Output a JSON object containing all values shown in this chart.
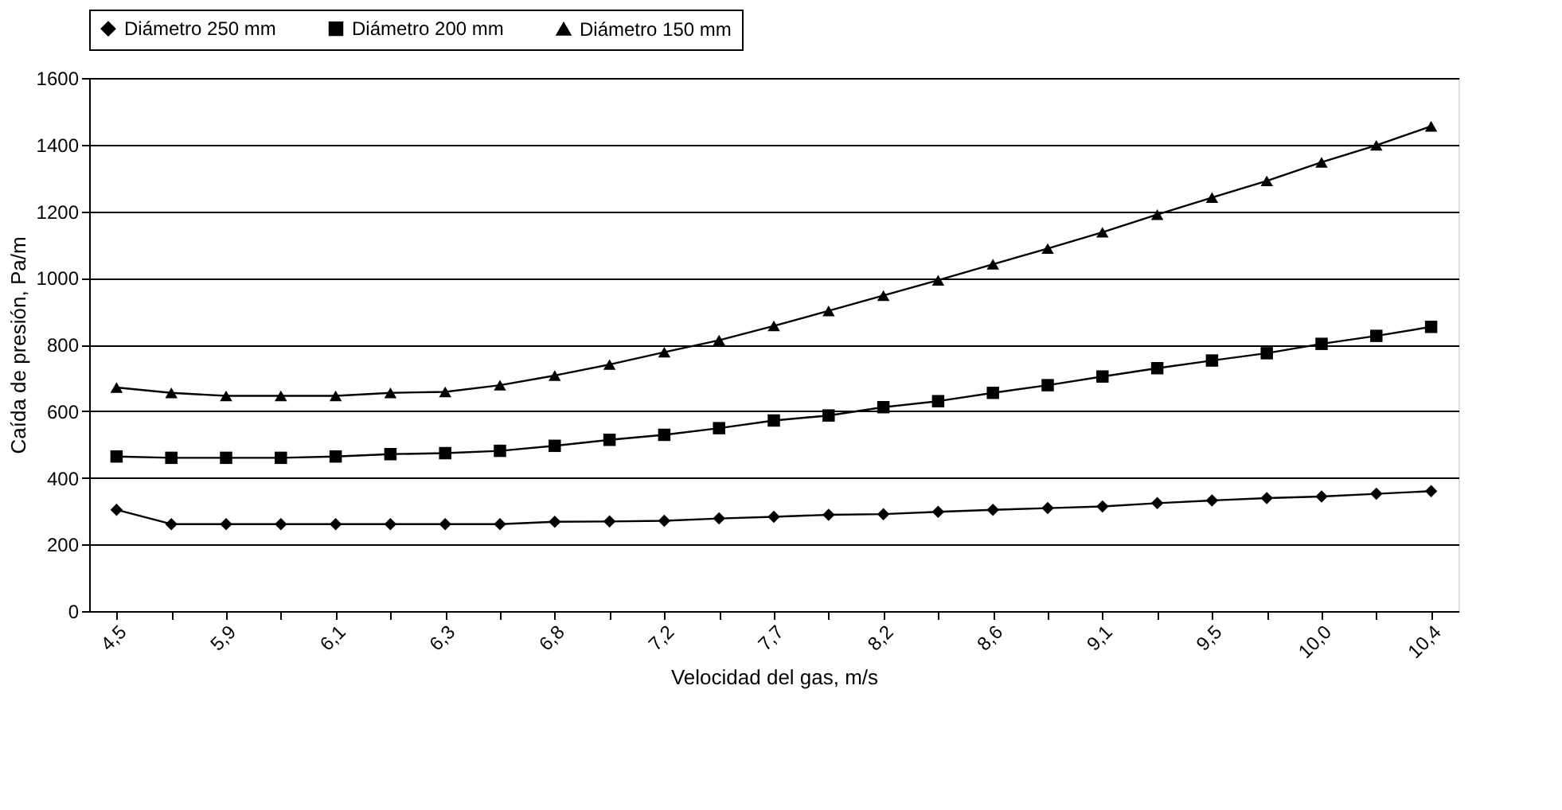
{
  "chart_data": {
    "type": "line",
    "xlabel": "Velocidad del gas, m/s",
    "ylabel": "Caída de presión, Pa/m",
    "categories": [
      "4,5",
      null,
      "5,9",
      null,
      "6,1",
      null,
      "6,3",
      null,
      "6,8",
      null,
      "7,2",
      null,
      "7,7",
      null,
      "8,2",
      null,
      "8,6",
      null,
      "9,1",
      null,
      "9,5",
      null,
      "10,0",
      null,
      "10,4"
    ],
    "series": [
      {
        "name": "Diámetro 250 mm",
        "color": "#000000",
        "marker": "diamond",
        "values": [
          304,
          261,
          261,
          261,
          261,
          261,
          261,
          261,
          268,
          269,
          271,
          278,
          283,
          289,
          291,
          298,
          304,
          309,
          314,
          324,
          332,
          339,
          344,
          352,
          360
        ]
      },
      {
        "name": "Diámetro 200 mm",
        "color": "#000000",
        "marker": "square",
        "values": [
          464,
          460,
          460,
          460,
          464,
          471,
          474,
          481,
          496,
          514,
          529,
          549,
          572,
          587,
          612,
          630,
          655,
          678,
          704,
          729,
          752,
          774,
          802,
          826,
          853
        ]
      },
      {
        "name": "Diámetro 150 mm",
        "color": "#000000",
        "marker": "triangle",
        "values": [
          671,
          655,
          646,
          646,
          646,
          655,
          658,
          678,
          707,
          740,
          777,
          813,
          856,
          901,
          947,
          993,
          1041,
          1088,
          1137,
          1190,
          1241,
          1291,
          1347,
          1398,
          1455
        ]
      }
    ],
    "ylim": [
      0,
      1600
    ],
    "yticks": [
      0,
      200,
      400,
      600,
      800,
      1000,
      1200,
      1400,
      1600
    ],
    "grid": "y",
    "legend": "top",
    "line_style": "solid"
  }
}
